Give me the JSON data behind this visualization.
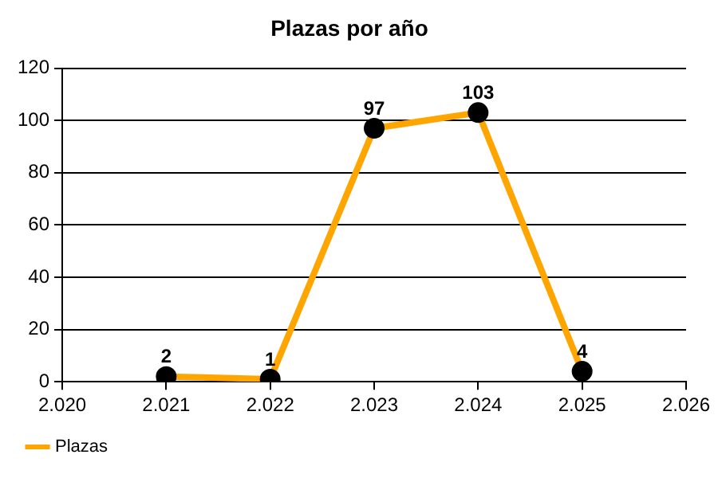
{
  "chart_data": {
    "type": "line",
    "title": "Plazas por año",
    "x": [
      2021,
      2022,
      2023,
      2024,
      2025
    ],
    "series": [
      {
        "name": "Plazas",
        "color": "#ffa500",
        "values": [
          2,
          1,
          97,
          103,
          4
        ]
      }
    ],
    "xlim": [
      2020,
      2026
    ],
    "xticks": [
      {
        "value": 2020,
        "label": "2.020"
      },
      {
        "value": 2021,
        "label": "2.021"
      },
      {
        "value": 2022,
        "label": "2.022"
      },
      {
        "value": 2023,
        "label": "2.023"
      },
      {
        "value": 2024,
        "label": "2.024"
      },
      {
        "value": 2025,
        "label": "2.025"
      },
      {
        "value": 2026,
        "label": "2.026"
      }
    ],
    "ylim": [
      0,
      120
    ],
    "yticks": [
      0,
      20,
      40,
      60,
      80,
      100,
      120
    ],
    "grid": "y",
    "legend": "bottom left",
    "marker": "circle",
    "line_style": "solid",
    "data_labels": true
  }
}
